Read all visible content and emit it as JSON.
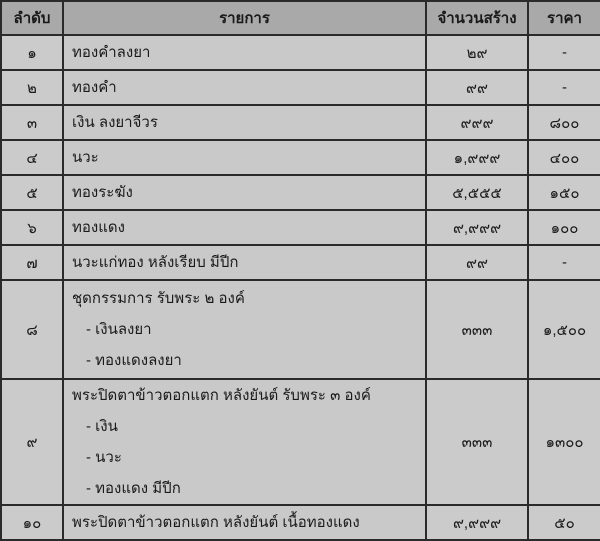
{
  "headers": {
    "no": "ลำดับ",
    "item": "รายการ",
    "quantity": "จำนวนสร้าง",
    "price": "ราคา"
  },
  "rows": [
    {
      "no": "๑",
      "item": "ทองคำลงยา",
      "subitems": [],
      "quantity": "๒๙",
      "price": "-"
    },
    {
      "no": "๒",
      "item": "ทองคำ",
      "subitems": [],
      "quantity": "๙๙",
      "price": "-"
    },
    {
      "no": "๓",
      "item": "เงิน ลงยาจีวร",
      "subitems": [],
      "quantity": "๙๙๙",
      "price": "๘๐๐"
    },
    {
      "no": "๔",
      "item": "นวะ",
      "subitems": [],
      "quantity": "๑,๙๙๙",
      "price": "๔๐๐"
    },
    {
      "no": "๕",
      "item": "ทองระฆัง",
      "subitems": [],
      "quantity": "๕,๕๕๕",
      "price": "๑๕๐"
    },
    {
      "no": "๖",
      "item": "ทองแดง",
      "subitems": [],
      "quantity": "๙,๙๙๙",
      "price": "๑๐๐"
    },
    {
      "no": "๗",
      "item": "นวะแก่ทอง หลังเรียบ มีปีก",
      "subitems": [],
      "quantity": "๙๙",
      "price": "-"
    },
    {
      "no": "๘",
      "item": "ชุดกรรมการ รับพระ ๒ องค์",
      "subitems": [
        "- เงินลงยา",
        "- ทองแดงลงยา"
      ],
      "quantity": "๓๓๓",
      "price": "๑,๕๐๐"
    },
    {
      "no": "๙",
      "item": "พระปิดตาข้าวตอกแตก หลังยันต์ รับพระ ๓ องค์",
      "subitems": [
        "- เงิน",
        "- นวะ",
        "- ทองแดง มีปีก"
      ],
      "quantity": "๓๓๓",
      "price": "๑๓๐๐"
    },
    {
      "no": "๑๐",
      "item": "พระปิดตาข้าวตอกแตก หลังยันต์ เนื้อทองแดง",
      "subitems": [],
      "quantity": "๙,๙๙๙",
      "price": "๕๐"
    }
  ]
}
